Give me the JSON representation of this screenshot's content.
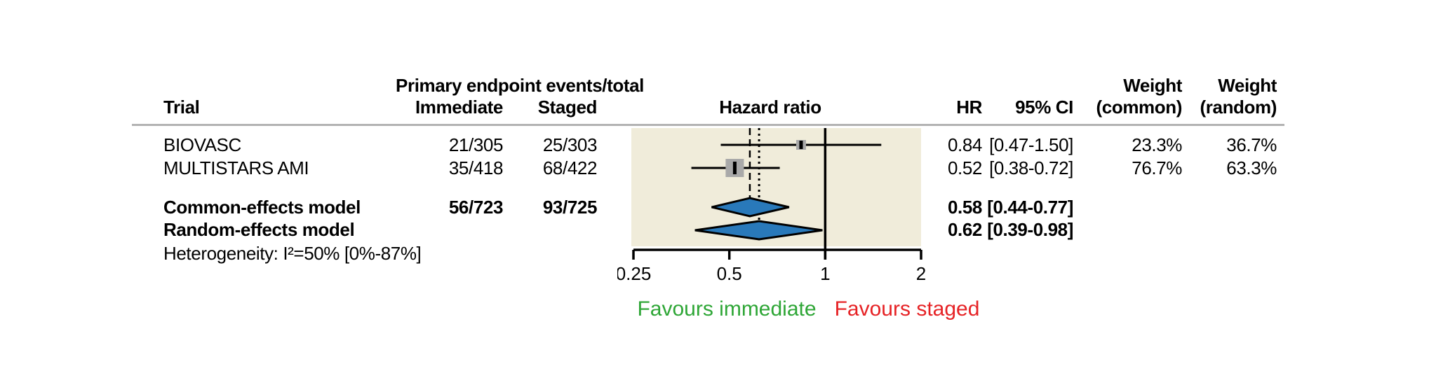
{
  "table": {
    "header": {
      "group_label": "Primary endpoint events/total",
      "trial": "Trial",
      "immediate": "Immediate",
      "staged": "Staged",
      "hazard_ratio": "Hazard ratio",
      "hr": "HR",
      "ci": "95% CI",
      "weight_common_line1": "Weight",
      "weight_common_line2": "(common)",
      "weight_random_line1": "Weight",
      "weight_random_line2": "(random)"
    },
    "rows": [
      {
        "trial": "BIOVASC",
        "immediate": "21/305",
        "staged": "25/303",
        "hr": "0.84",
        "ci": "[0.47-1.50]",
        "weight_common": "23.3%",
        "weight_random": "36.7%"
      },
      {
        "trial": "MULTISTARS AMI",
        "immediate": "35/418",
        "staged": "68/422",
        "hr": "0.52",
        "ci": "[0.38-0.72]",
        "weight_common": "76.7%",
        "weight_random": "63.3%"
      }
    ],
    "summary_rows": [
      {
        "label": "Common-effects model",
        "immediate": "56/723",
        "staged": "93/725",
        "hr": "0.58",
        "ci": "[0.44-0.77]"
      },
      {
        "label": "Random-effects model",
        "immediate": "",
        "staged": "",
        "hr": "0.62",
        "ci": "[0.39-0.98]"
      }
    ],
    "heterogeneity": "Heterogeneity: I²=50% [0%-87%]"
  },
  "chart_data": {
    "type": "forest",
    "x_scale": "log",
    "xlim": [
      0.25,
      2
    ],
    "ticks": [
      0.25,
      0.5,
      1,
      2
    ],
    "tick_labels": [
      "0.25",
      "0.5",
      "1",
      "2"
    ],
    "reference_line": 1,
    "studies": [
      {
        "name": "BIOVASC",
        "hr": 0.84,
        "ci_low": 0.47,
        "ci_high": 1.5,
        "weight_common_pct": 23.3,
        "weight_random_pct": 36.7
      },
      {
        "name": "MULTISTARS AMI",
        "hr": 0.52,
        "ci_low": 0.38,
        "ci_high": 0.72,
        "weight_common_pct": 76.7,
        "weight_random_pct": 63.3
      }
    ],
    "summaries": [
      {
        "name": "Common-effects model",
        "hr": 0.58,
        "ci_low": 0.44,
        "ci_high": 0.77,
        "guide_style": "dashed"
      },
      {
        "name": "Random-effects model",
        "hr": 0.62,
        "ci_low": 0.39,
        "ci_high": 0.98,
        "guide_style": "dotted"
      }
    ],
    "heterogeneity": {
      "i_squared": "50%",
      "ci": "[0%-87%]"
    },
    "colors": {
      "plot_bg": "#f0ecda",
      "marker_gray": "#a9a9a9",
      "diamond_blue": "#2979ba",
      "line_black": "#000000",
      "rule_gray": "#b3b3b3",
      "favours_green": "#2ea636",
      "favours_red": "#e62225"
    },
    "annotations": {
      "favours_left": "Favours immediate",
      "favours_right": "Favours staged"
    }
  }
}
